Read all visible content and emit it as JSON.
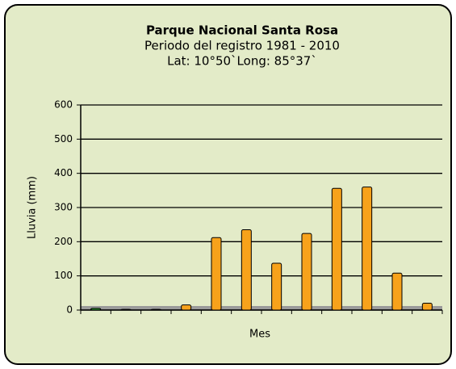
{
  "chart_data": {
    "type": "bar",
    "title": "Parque Nacional Santa Rosa",
    "subtitle": "Periodo del registro 1981 - 2010",
    "annotation": "Lat: 10°50`Long: 85°37`",
    "x_label": "Mes",
    "y_label": "Lluvia (mm)",
    "categories": [
      null,
      null,
      null,
      null,
      null,
      null,
      null,
      null,
      null,
      null,
      null,
      null
    ],
    "values": [
      5,
      2,
      2,
      15,
      212,
      235,
      137,
      224,
      356,
      360,
      108,
      20
    ],
    "colors": [
      "#2e9b2e",
      "#2e9b2e",
      "#2e9b2e",
      "#f7a21b",
      "#f7a21b",
      "#f7a21b",
      "#f7a21b",
      "#f7a21b",
      "#f7a21b",
      "#f7a21b",
      "#f7a21b",
      "#f7a21b"
    ],
    "ylim": [
      0,
      600
    ],
    "yticks": [
      0,
      100,
      200,
      300,
      400,
      500,
      600
    ],
    "grid": true
  }
}
